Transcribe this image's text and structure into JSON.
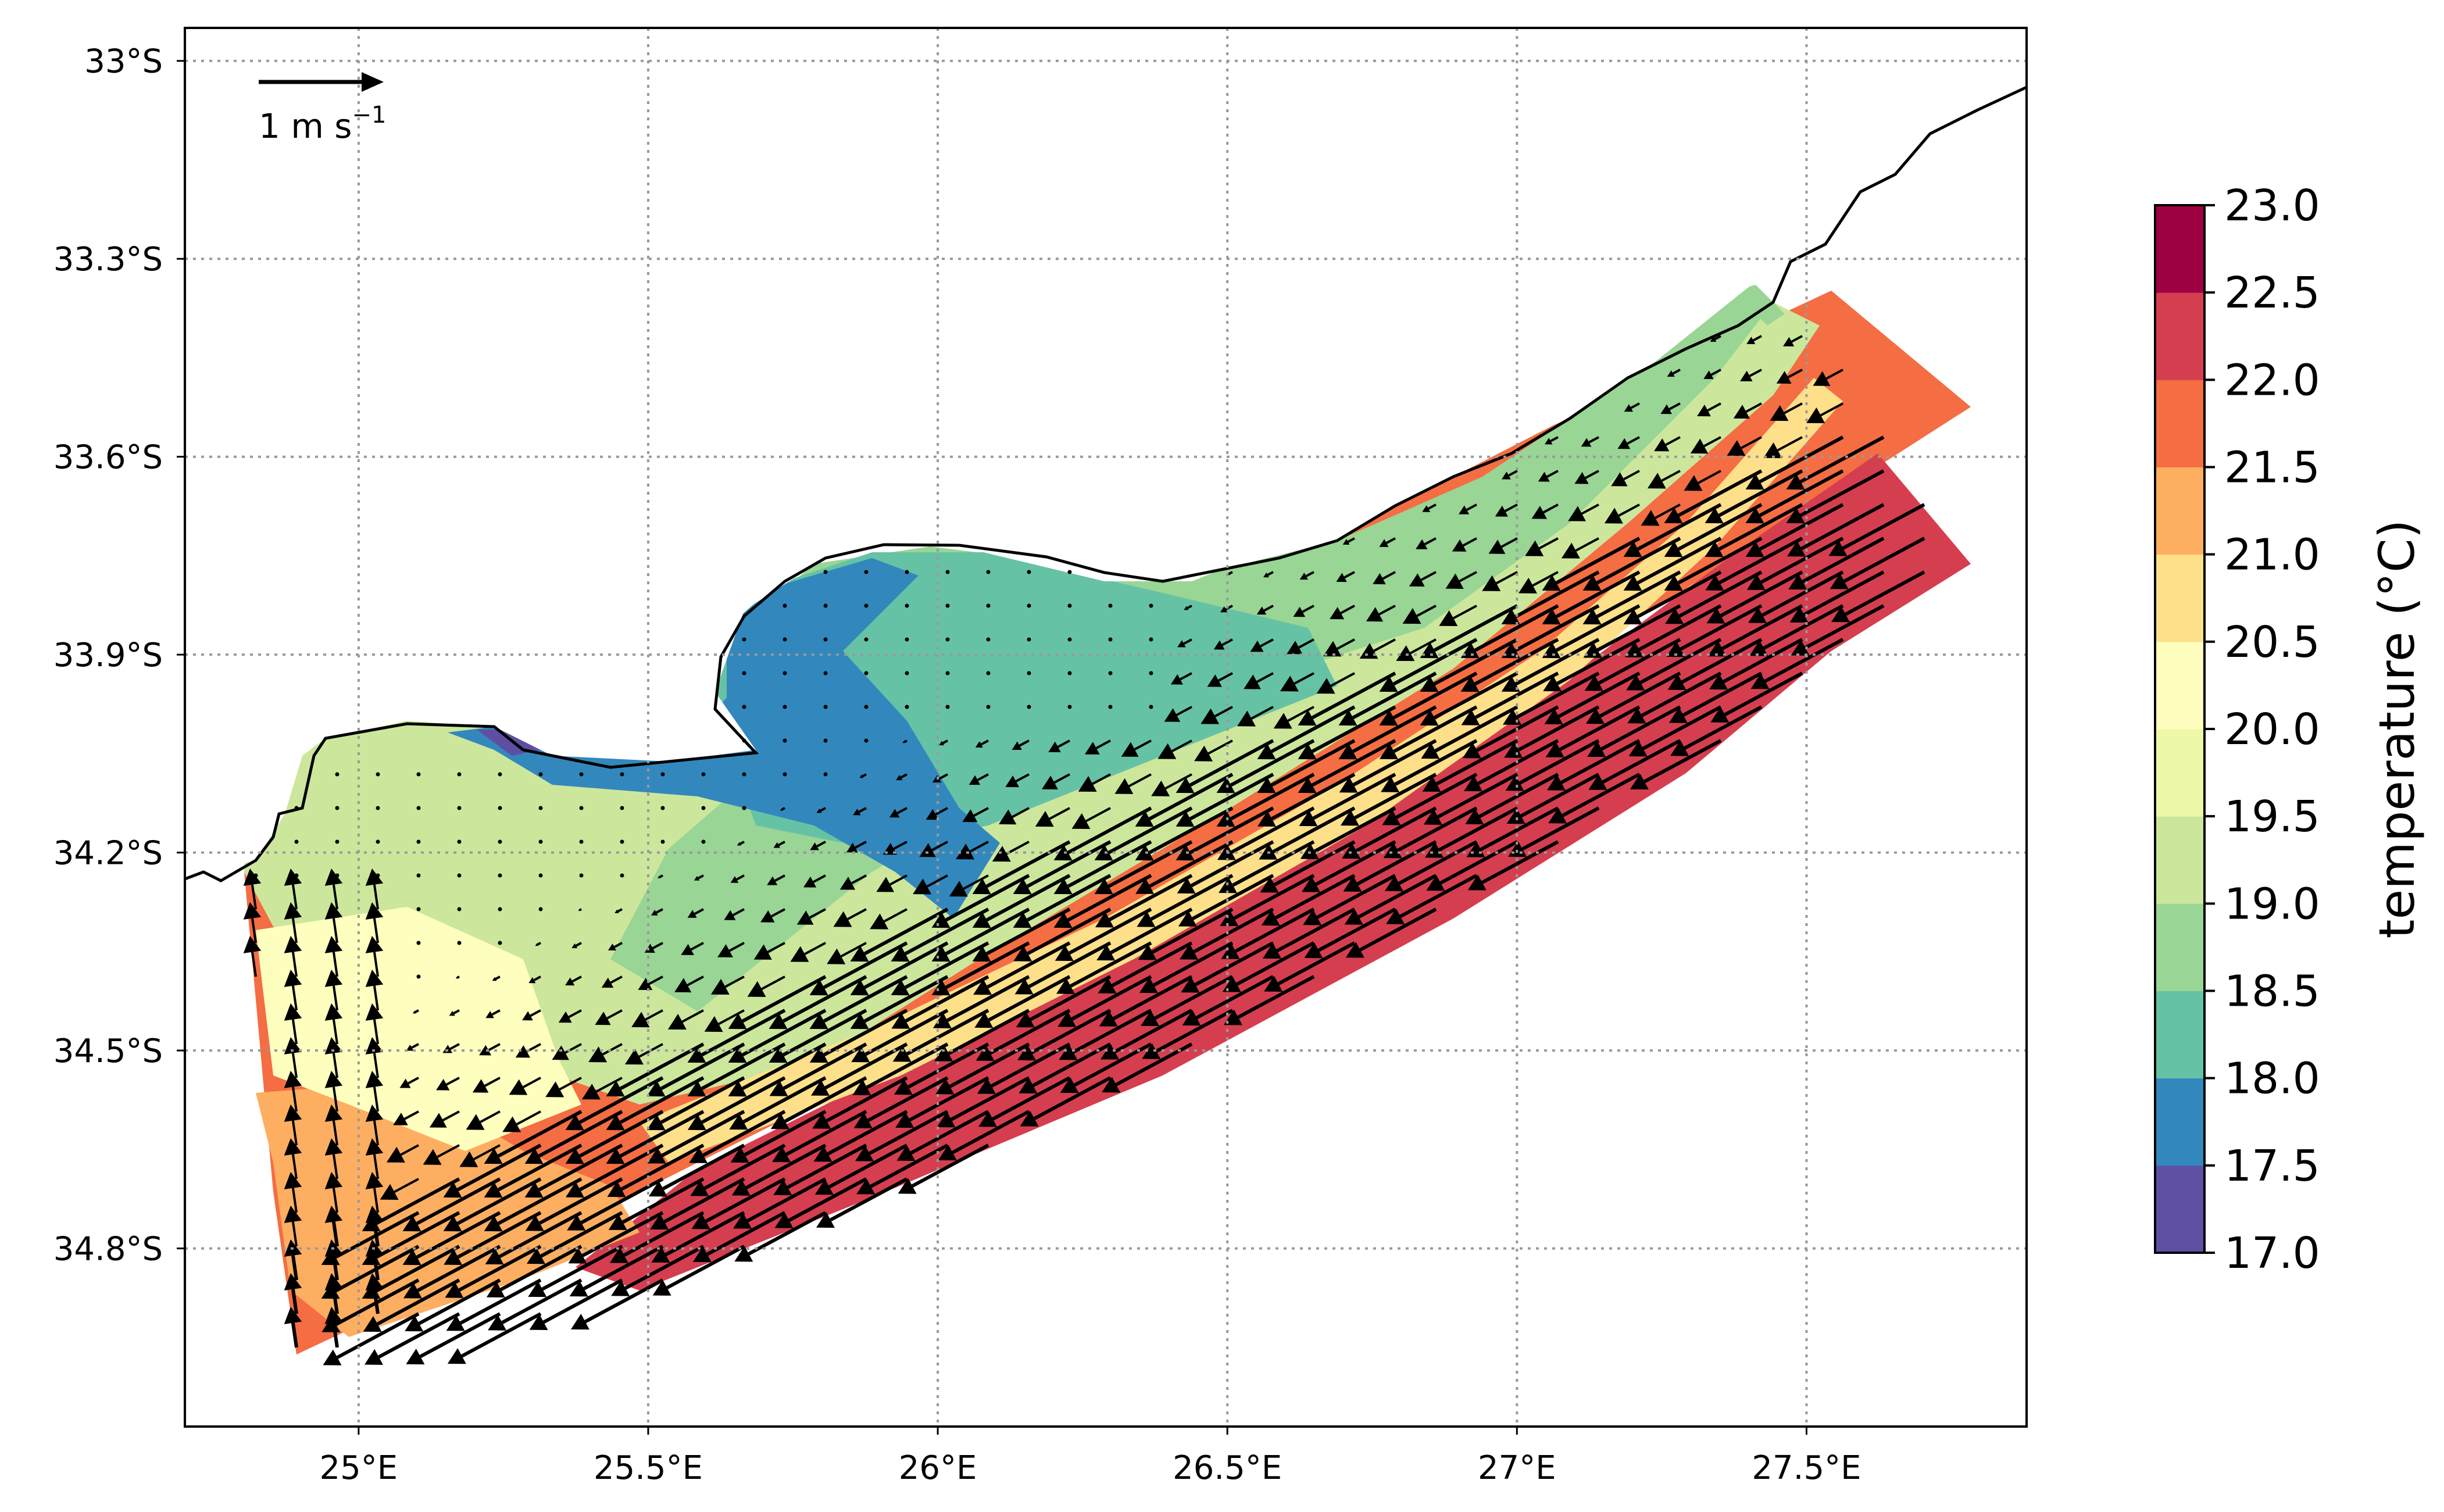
{
  "map": {
    "lon_range": [
      24.7,
      27.88
    ],
    "lat_range": [
      -35.07,
      -32.95
    ],
    "lon_ticks": [
      {
        "value": 25.0,
        "label": "25°E"
      },
      {
        "value": 25.5,
        "label": "25.5°E"
      },
      {
        "value": 26.0,
        "label": "26°E"
      },
      {
        "value": 26.5,
        "label": "26.5°E"
      },
      {
        "value": 27.0,
        "label": "27°E"
      },
      {
        "value": 27.5,
        "label": "27.5°E"
      }
    ],
    "lat_ticks": [
      {
        "value": -33.0,
        "label": "33°S"
      },
      {
        "value": -33.3,
        "label": "33.3°S"
      },
      {
        "value": -33.6,
        "label": "33.6°S"
      },
      {
        "value": -33.9,
        "label": "33.9°S"
      },
      {
        "value": -34.2,
        "label": "34.2°S"
      },
      {
        "value": -34.5,
        "label": "34.5°S"
      },
      {
        "value": -34.8,
        "label": "34.8°S"
      }
    ],
    "grid": true,
    "grid_style": "dotted",
    "land_color": "#ffffff",
    "coastline_color": "#000000"
  },
  "scale_arrow": {
    "label_text": "1 m s",
    "label_exponent": "−1"
  },
  "colorbar": {
    "title": "temperature (°C)",
    "levels": [
      "17.0",
      "17.5",
      "18.0",
      "18.5",
      "19.0",
      "19.5",
      "20.0",
      "20.5",
      "21.0",
      "21.5",
      "22.0",
      "22.5",
      "23.0"
    ],
    "colors": [
      "#5e4fa2",
      "#3288bd",
      "#66c2a5",
      "#99d594",
      "#cce79c",
      "#eef8a7",
      "#fefebe",
      "#fee08b",
      "#fdae61",
      "#f46d43",
      "#d53e4f",
      "#9e0142"
    ]
  }
}
